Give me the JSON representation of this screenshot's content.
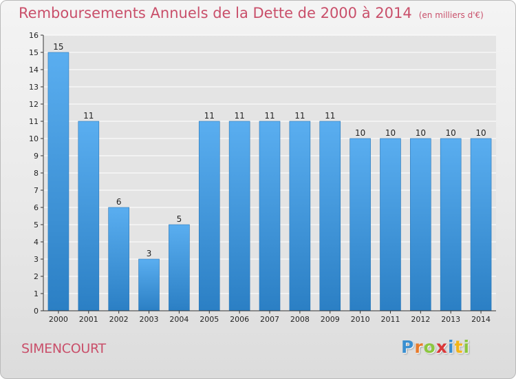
{
  "header": {
    "title": "Remboursements Annuels de la Dette de 2000 à 2014",
    "unit": "(en milliers d'€)"
  },
  "footer": {
    "city": "SIMENCOURT",
    "logo_letters": [
      "P",
      "r",
      "o",
      "x",
      "i",
      "t",
      "i"
    ],
    "logo_colors": [
      "#3a8fd0",
      "#e87a2a",
      "#8cc63f",
      "#d9383a",
      "#3a8fd0",
      "#f2b418",
      "#8cc63f"
    ]
  },
  "chart_data": {
    "type": "bar",
    "title": "Remboursements Annuels de la Dette de 2000 à 2014",
    "subtitle": "(en milliers d'€)",
    "xlabel": "",
    "ylabel": "",
    "categories": [
      "2000",
      "2001",
      "2002",
      "2003",
      "2004",
      "2005",
      "2006",
      "2007",
      "2008",
      "2009",
      "2010",
      "2011",
      "2012",
      "2013",
      "2014"
    ],
    "values": [
      15,
      11,
      6,
      3,
      5,
      11,
      11,
      11,
      11,
      11,
      10,
      10,
      10,
      10,
      10
    ],
    "data_labels": [
      "15",
      "11",
      "6",
      "3",
      "5",
      "11",
      "11",
      "11",
      "11",
      "11",
      "10",
      "10",
      "10",
      "10",
      "10"
    ],
    "ylim": [
      0,
      16
    ],
    "yticks": [
      0,
      1,
      2,
      3,
      4,
      5,
      6,
      7,
      8,
      9,
      10,
      11,
      12,
      13,
      14,
      15,
      16
    ],
    "grid": true,
    "legend": "none",
    "colors": {
      "bar_light": "#5aaef0",
      "bar_dark": "#2b7fc4",
      "grid": "#ffffff",
      "axis": "#333333",
      "title": "#c94f6a"
    }
  }
}
